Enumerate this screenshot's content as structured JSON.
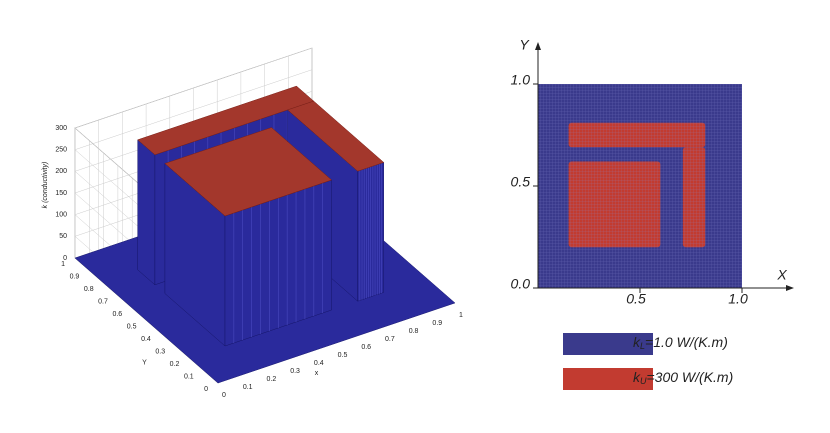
{
  "chart_data": [
    {
      "type": "surface3d",
      "zlabel": "k (conductivity)",
      "xlabel": "x",
      "ylabel": "Y",
      "xlim": [
        0,
        1
      ],
      "ylim": [
        0,
        1
      ],
      "zlim": [
        0,
        300
      ],
      "xticks": [
        0,
        0.1,
        0.2,
        0.3,
        0.4,
        0.5,
        0.6,
        0.7,
        0.8,
        0.9,
        1
      ],
      "yticks": [
        0,
        0.1,
        0.2,
        0.3,
        0.4,
        0.5,
        0.6,
        0.7,
        0.8,
        0.9,
        1
      ],
      "zticks": [
        0,
        50,
        100,
        150,
        200,
        250,
        300
      ],
      "grid": true,
      "low_color": "#2a2a9c",
      "high_color": "#a3372c"
    },
    {
      "type": "map",
      "xlabel": "X",
      "ylabel": "Y",
      "xlim": [
        0,
        1
      ],
      "ylim": [
        0,
        1
      ],
      "xticks": [
        0.5,
        {
          "value": 1,
          "label": "1.0"
        }
      ],
      "yticks": [
        {
          "value": 0,
          "label": "0.0"
        },
        0.5,
        {
          "value": 1,
          "label": "1.0"
        }
      ],
      "legend": [
        {
          "symbol": "k",
          "subscript": "L",
          "text": "=1.0 W/(K.m)",
          "color": "#3a3a8c"
        },
        {
          "symbol": "k",
          "subscript": "U",
          "text": "=300 W/(K.m)",
          "color": "#c23b30"
        }
      ]
    }
  ]
}
